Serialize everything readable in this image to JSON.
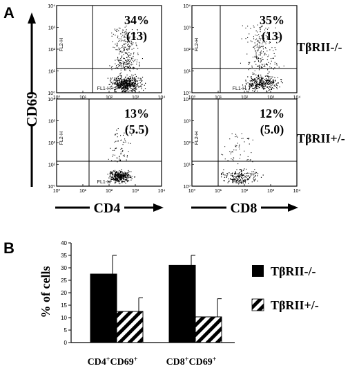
{
  "panel_a": {
    "label": "A",
    "y_axis_label": "CD69",
    "x_label_left": "CD4",
    "x_label_right": "CD8",
    "plot_y_axis": "FL2-H",
    "plot_x_axis": "FL1-H",
    "ticks": [
      "10⁰",
      "10¹",
      "10²",
      "10³",
      "10⁴"
    ],
    "row_labels": [
      "TβRII-/-",
      "TβRII+/-"
    ],
    "plots": [
      {
        "pct": "34%",
        "mfi": "(13)"
      },
      {
        "pct": "35%",
        "mfi": "(13)"
      },
      {
        "pct": "13%",
        "mfi": "(5.5)"
      },
      {
        "pct": "12%",
        "mfi": "(5.0)"
      }
    ]
  },
  "panel_b": {
    "label": "B",
    "legend": [
      {
        "name": "TβRII-/-",
        "fill": "solid-black"
      },
      {
        "name": "TβRII+/-",
        "fill": "diagonal-stripes"
      }
    ]
  },
  "chart_data": {
    "type": "bar",
    "categories": [
      "CD4+CD69+",
      "CD8+CD69+"
    ],
    "category_parts": [
      [
        "CD4",
        "+",
        "CD69",
        "+"
      ],
      [
        "CD8",
        "+",
        "CD69",
        "+"
      ]
    ],
    "series": [
      {
        "name": "TβRII-/-",
        "values": [
          27.5,
          31
        ],
        "errors": [
          7.5,
          4
        ]
      },
      {
        "name": "TβRII+/-",
        "values": [
          12.5,
          10.3
        ],
        "errors": [
          5.5,
          7.3
        ]
      }
    ],
    "ylabel": "% of cells",
    "ylim": [
      0,
      40
    ],
    "yticks": [
      0,
      5,
      10,
      15,
      20,
      25,
      30,
      35,
      40
    ],
    "grid": false,
    "legend_position": "right"
  }
}
